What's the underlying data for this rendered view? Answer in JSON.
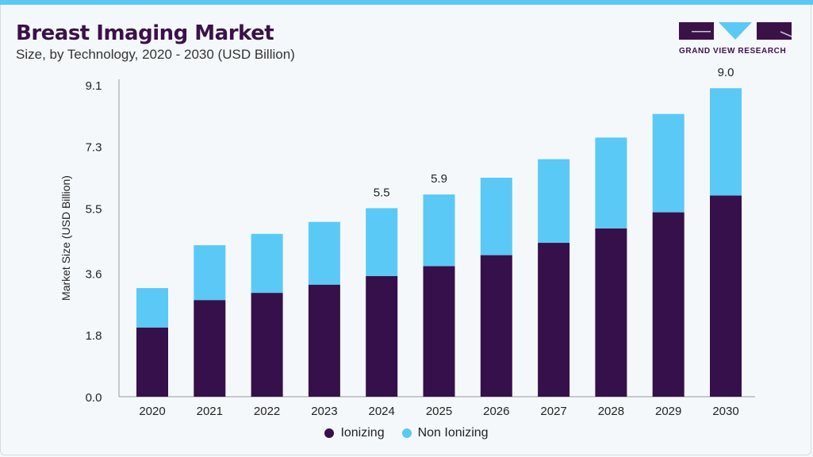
{
  "header": {
    "title": "Breast Imaging Market",
    "subtitle": "Size, by Technology, 2020 - 2030 (USD Billion)"
  },
  "logo": {
    "text": "GRAND VIEW RESEARCH"
  },
  "chart_data": {
    "type": "bar",
    "stacked": true,
    "title": "Breast Imaging Market",
    "subtitle": "Size, by Technology, 2020 - 2030 (USD Billion)",
    "xlabel": "",
    "ylabel": "Market Size (USD Billion)",
    "ylim": [
      0,
      9.1
    ],
    "yticks": [
      "0.0",
      "1.8",
      "3.6",
      "5.5",
      "7.3",
      "9.1"
    ],
    "categories": [
      "2020",
      "2021",
      "2022",
      "2023",
      "2024",
      "2025",
      "2026",
      "2027",
      "2028",
      "2029",
      "2030"
    ],
    "series": [
      {
        "name": "Ionizing",
        "color": "#36104a",
        "values": [
          2.02,
          2.82,
          3.03,
          3.27,
          3.52,
          3.81,
          4.13,
          4.49,
          4.91,
          5.38,
          5.87
        ]
      },
      {
        "name": "Non Ionizing",
        "color": "#5bc9f5",
        "values": [
          1.15,
          1.6,
          1.72,
          1.83,
          1.98,
          2.09,
          2.26,
          2.44,
          2.65,
          2.87,
          3.13
        ]
      }
    ],
    "data_labels": {
      "2024": "5.5",
      "2025": "5.9",
      "2030": "9.0"
    },
    "grid": false,
    "legend_position": "bottom"
  }
}
